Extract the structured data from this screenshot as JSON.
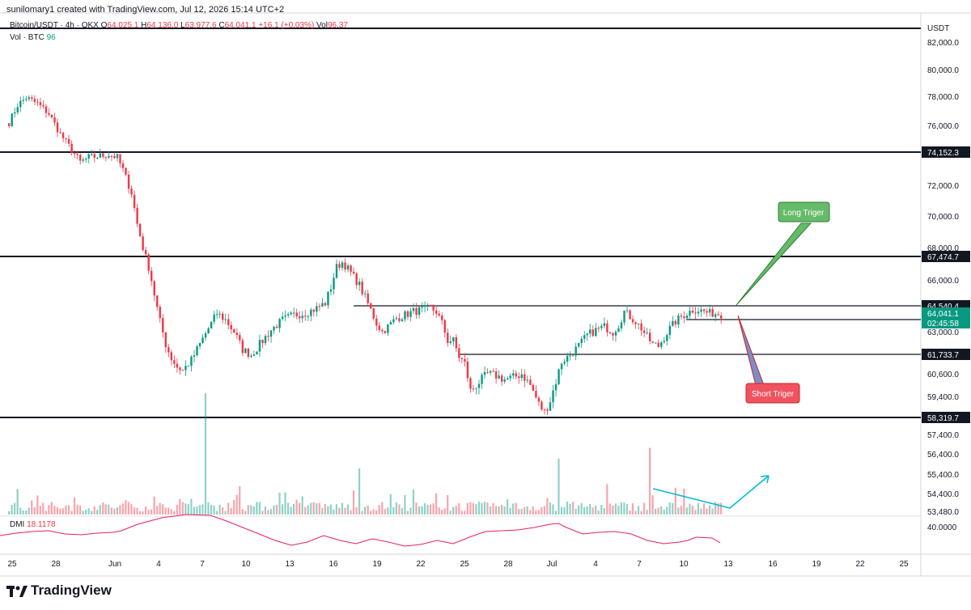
{
  "header": {
    "credit": "sunilomary1 created with TradingView.com, Jul 12, 2026 15:14 UTC+2",
    "symbol": "Bitcoin/USDT · 4h · OKX",
    "ohlc": {
      "o_label": "O",
      "o": "64,025.1",
      "h_label": "H",
      "h": "64,136.0",
      "l_label": "L",
      "l": "63,977.6",
      "c_label": "C",
      "c": "64,041.1",
      "change": "+16.1 (+0.03%)",
      "vol_label": "Vol",
      "vol": "96.37"
    },
    "vol_legend": "Vol · BTC",
    "vol_legend_value": "96",
    "dmi_label": "DMI",
    "dmi_value": "18.1178"
  },
  "brand": "TradingView",
  "chart_data": {
    "type": "candlestick",
    "currency": "USDT",
    "y_ticks": [
      82000,
      80000,
      78000,
      76000,
      72000,
      70000,
      68000,
      66000,
      63000,
      60600,
      59400,
      57400,
      56400,
      55400,
      54400,
      53480
    ],
    "y_tick_labels": [
      "82,000.0",
      "80,000.0",
      "78,000.0",
      "76,000.0",
      "72,000.0",
      "70,000.0",
      "68,000.0",
      "66,000.0",
      "63,000.0",
      "60,600.0",
      "59,400.0",
      "57,400.0",
      "56,400.0",
      "55,400.0",
      "54,400.0",
      "53,480.0"
    ],
    "dmi_tick": "40.0000",
    "x_tick_labels": [
      "25",
      "28",
      "Jun",
      "4",
      "7",
      "10",
      "13",
      "16",
      "19",
      "22",
      "25",
      "28",
      "Jul",
      "4",
      "7",
      "10",
      "13",
      "16",
      "19",
      "22",
      "25"
    ],
    "levels": [
      {
        "price": 83200,
        "label": ""
      },
      {
        "price": 74152.3,
        "label": "74,152.3"
      },
      {
        "price": 67474.7,
        "label": "67,474.7"
      },
      {
        "price": 64540.4,
        "label": "64,540.4"
      },
      {
        "price": 63850,
        "label": ""
      },
      {
        "price": 61733.7,
        "label": "61,733.7"
      },
      {
        "price": 58319.7,
        "label": "58,319.7"
      }
    ],
    "last_price": "64,041.1",
    "countdown": "02:45:58",
    "path": [
      [
        0,
        76200
      ],
      [
        3,
        77400
      ],
      [
        6,
        77900
      ],
      [
        10,
        77500
      ],
      [
        14,
        76800
      ],
      [
        18,
        75400
      ],
      [
        22,
        74300
      ],
      [
        25,
        73500
      ],
      [
        28,
        73800
      ],
      [
        32,
        73900
      ],
      [
        35,
        74000
      ],
      [
        38,
        73800
      ],
      [
        40,
        73000
      ],
      [
        43,
        71500
      ],
      [
        45,
        69500
      ],
      [
        47,
        68000
      ],
      [
        49,
        66800
      ],
      [
        51,
        65200
      ],
      [
        53,
        63600
      ],
      [
        55,
        62300
      ],
      [
        57,
        61500
      ],
      [
        59,
        61000
      ],
      [
        61,
        60800
      ],
      [
        64,
        61400
      ],
      [
        67,
        62300
      ],
      [
        70,
        63200
      ],
      [
        73,
        64100
      ],
      [
        76,
        63700
      ],
      [
        79,
        63000
      ],
      [
        82,
        62000
      ],
      [
        85,
        61700
      ],
      [
        88,
        62300
      ],
      [
        92,
        63100
      ],
      [
        96,
        63700
      ],
      [
        100,
        64000
      ],
      [
        104,
        64100
      ],
      [
        108,
        64400
      ],
      [
        111,
        64700
      ],
      [
        113,
        65600
      ],
      [
        115,
        66800
      ],
      [
        117,
        67100
      ],
      [
        119,
        66700
      ],
      [
        121,
        66200
      ],
      [
        123,
        65700
      ],
      [
        125,
        65000
      ],
      [
        127,
        64300
      ],
      [
        129,
        63500
      ],
      [
        131,
        63000
      ],
      [
        133,
        63300
      ],
      [
        136,
        63800
      ],
      [
        139,
        64000
      ],
      [
        142,
        64200
      ],
      [
        145,
        64300
      ],
      [
        148,
        64400
      ],
      [
        150,
        64200
      ],
      [
        152,
        63500
      ],
      [
        154,
        62500
      ],
      [
        156,
        62500
      ],
      [
        158,
        61600
      ],
      [
        160,
        61200
      ],
      [
        162,
        59700
      ],
      [
        164,
        60000
      ],
      [
        166,
        60300
      ],
      [
        168,
        60600
      ],
      [
        171,
        60500
      ],
      [
        174,
        60300
      ],
      [
        177,
        60400
      ],
      [
        180,
        60600
      ],
      [
        183,
        60000
      ],
      [
        186,
        59000
      ],
      [
        188,
        58600
      ],
      [
        190,
        59200
      ],
      [
        192,
        60200
      ],
      [
        194,
        61300
      ],
      [
        197,
        61700
      ],
      [
        200,
        62200
      ],
      [
        203,
        62800
      ],
      [
        206,
        63100
      ],
      [
        209,
        63300
      ],
      [
        212,
        63000
      ],
      [
        214,
        63400
      ],
      [
        216,
        64200
      ],
      [
        218,
        63900
      ],
      [
        220,
        63600
      ],
      [
        222,
        63200
      ],
      [
        224,
        62700
      ],
      [
        226,
        62300
      ],
      [
        228,
        62200
      ],
      [
        230,
        62700
      ],
      [
        232,
        63200
      ],
      [
        234,
        63600
      ],
      [
        236,
        63900
      ],
      [
        238,
        64100
      ],
      [
        240,
        64300
      ],
      [
        242,
        64300
      ],
      [
        244,
        64200
      ],
      [
        246,
        64100
      ],
      [
        248,
        64080
      ],
      [
        250,
        64041
      ]
    ],
    "volume_spikes": [
      [
        69,
        1.0
      ],
      [
        123,
        0.38
      ],
      [
        193,
        0.46
      ],
      [
        225,
        0.55
      ],
      [
        210,
        0.25
      ]
    ],
    "annotations": [
      {
        "text": "Long Triger",
        "color": "#66bb6a"
      },
      {
        "text": "Short Triger",
        "color": "#ef5360"
      }
    ],
    "colors": {
      "up": "#089981",
      "down": "#f23645",
      "dmi": "#e91e63",
      "arrow": "#00bcd4",
      "text": "#131722"
    }
  }
}
